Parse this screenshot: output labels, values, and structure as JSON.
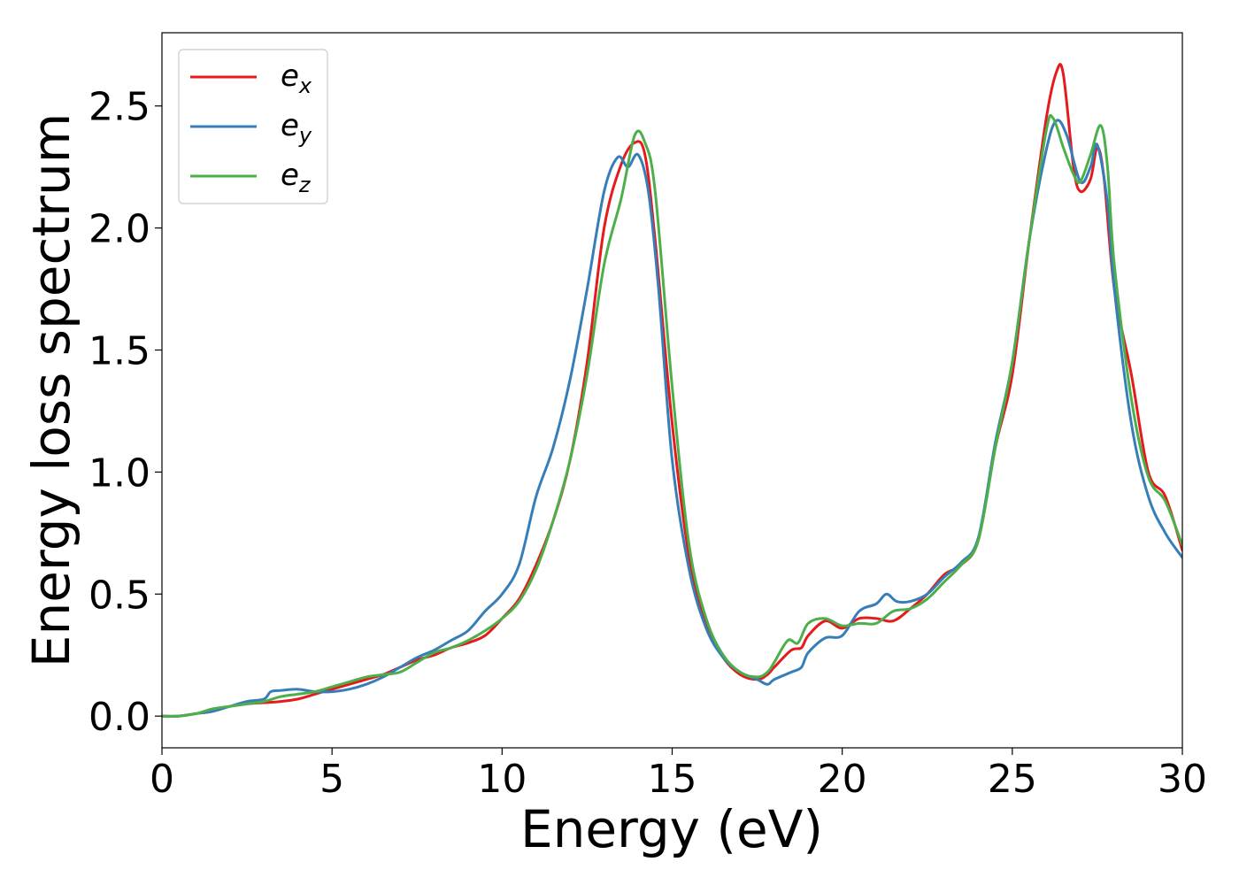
{
  "chart_data": {
    "type": "line",
    "title": "",
    "xlabel": "Energy (eV)",
    "ylabel": "Energy loss spectrum",
    "xlim": [
      0,
      30
    ],
    "ylim": [
      -0.13,
      2.8
    ],
    "xticks": [
      0,
      5,
      10,
      15,
      20,
      25,
      30
    ],
    "xtick_labels": [
      "0",
      "5",
      "10",
      "15",
      "20",
      "25",
      "30"
    ],
    "yticks": [
      0.0,
      0.5,
      1.0,
      1.5,
      2.0,
      2.5
    ],
    "ytick_labels": [
      "0.0",
      "0.5",
      "1.0",
      "1.5",
      "2.0",
      "2.5"
    ],
    "grid": false,
    "legend_position": "top-left",
    "series": [
      {
        "name": "e_x",
        "legend_base": "e",
        "legend_sub": "x",
        "color": "#e41a1c",
        "x": [
          0,
          0.5,
          1,
          1.5,
          2,
          2.5,
          3,
          3.5,
          4,
          4.5,
          5,
          5.5,
          6,
          6.5,
          7,
          7.5,
          8,
          8.5,
          9,
          9.5,
          10,
          10.5,
          11,
          11.5,
          12,
          12.5,
          13,
          13.5,
          13.9,
          14.2,
          14.5,
          15,
          15.5,
          16,
          16.5,
          17,
          17.5,
          17.8,
          18,
          18.5,
          18.8,
          19,
          19.5,
          20,
          20.5,
          21,
          21.5,
          22,
          22.5,
          23,
          23.5,
          24,
          24.5,
          25,
          25.5,
          26,
          26.3,
          26.5,
          26.8,
          27,
          27.3,
          27.5,
          27.7,
          28,
          28.5,
          29,
          29.5,
          30
        ],
        "y": [
          0,
          0,
          0.01,
          0.02,
          0.04,
          0.05,
          0.055,
          0.06,
          0.07,
          0.09,
          0.11,
          0.13,
          0.15,
          0.17,
          0.2,
          0.23,
          0.25,
          0.28,
          0.3,
          0.33,
          0.4,
          0.48,
          0.62,
          0.8,
          1.05,
          1.45,
          2.0,
          2.26,
          2.35,
          2.3,
          1.95,
          1.2,
          0.65,
          0.38,
          0.24,
          0.17,
          0.15,
          0.17,
          0.2,
          0.27,
          0.28,
          0.33,
          0.39,
          0.36,
          0.4,
          0.4,
          0.39,
          0.44,
          0.5,
          0.58,
          0.62,
          0.72,
          1.1,
          1.4,
          1.95,
          2.45,
          2.64,
          2.63,
          2.25,
          2.15,
          2.2,
          2.33,
          2.2,
          1.75,
          1.4,
          1.0,
          0.9,
          0.68
        ]
      },
      {
        "name": "e_y",
        "legend_base": "e",
        "legend_sub": "y",
        "color": "#377eb8",
        "x": [
          0,
          0.5,
          1,
          1.5,
          2,
          2.5,
          3,
          3.2,
          3.5,
          4,
          4.5,
          5,
          5.5,
          6,
          6.5,
          7,
          7.5,
          8,
          8.5,
          9,
          9.5,
          10,
          10.5,
          11,
          11.5,
          12,
          12.5,
          13,
          13.4,
          13.7,
          14.0,
          14.3,
          14.6,
          15,
          15.5,
          16,
          16.5,
          17,
          17.5,
          17.8,
          18,
          18.5,
          18.8,
          19,
          19.5,
          20,
          20.5,
          21,
          21.3,
          21.6,
          22,
          22.5,
          23,
          23.5,
          24,
          24.5,
          25,
          25.5,
          26,
          26.3,
          26.6,
          27,
          27.3,
          27.5,
          27.8,
          28,
          28.5,
          29,
          29.5,
          30
        ],
        "y": [
          0,
          0,
          0.01,
          0.02,
          0.04,
          0.06,
          0.07,
          0.1,
          0.105,
          0.11,
          0.1,
          0.1,
          0.11,
          0.13,
          0.16,
          0.2,
          0.24,
          0.27,
          0.31,
          0.35,
          0.43,
          0.5,
          0.62,
          0.9,
          1.1,
          1.38,
          1.75,
          2.15,
          2.29,
          2.25,
          2.3,
          2.15,
          1.75,
          1.05,
          0.6,
          0.36,
          0.24,
          0.18,
          0.15,
          0.13,
          0.15,
          0.18,
          0.2,
          0.26,
          0.32,
          0.33,
          0.43,
          0.46,
          0.5,
          0.47,
          0.47,
          0.5,
          0.57,
          0.63,
          0.73,
          1.12,
          1.45,
          1.95,
          2.32,
          2.44,
          2.38,
          2.19,
          2.25,
          2.34,
          2.1,
          1.75,
          1.2,
          0.9,
          0.75,
          0.65
        ]
      },
      {
        "name": "e_z",
        "legend_base": "e",
        "legend_sub": "z",
        "color": "#4daf4a",
        "x": [
          0,
          0.5,
          1,
          1.5,
          2,
          2.5,
          3,
          3.5,
          4,
          4.5,
          5,
          5.5,
          6,
          6.5,
          7,
          7.5,
          8,
          8.5,
          9,
          9.5,
          10,
          10.5,
          11,
          11.5,
          12,
          12.5,
          13,
          13.5,
          13.9,
          14.2,
          14.5,
          15,
          15.5,
          16,
          16.5,
          17,
          17.5,
          17.8,
          18,
          18.4,
          18.7,
          19,
          19.5,
          20,
          20.5,
          21,
          21.5,
          22,
          22.5,
          23,
          23.5,
          24,
          24.5,
          25,
          25.5,
          26,
          26.2,
          26.5,
          26.8,
          27,
          27.3,
          27.6,
          27.8,
          28,
          28.5,
          29,
          29.5,
          30
        ],
        "y": [
          0,
          0,
          0.01,
          0.03,
          0.04,
          0.05,
          0.06,
          0.08,
          0.09,
          0.1,
          0.12,
          0.14,
          0.16,
          0.17,
          0.18,
          0.22,
          0.26,
          0.28,
          0.31,
          0.35,
          0.4,
          0.47,
          0.6,
          0.8,
          1.05,
          1.4,
          1.85,
          2.12,
          2.38,
          2.35,
          2.15,
          1.35,
          0.7,
          0.4,
          0.25,
          0.18,
          0.16,
          0.18,
          0.22,
          0.31,
          0.3,
          0.38,
          0.4,
          0.37,
          0.38,
          0.38,
          0.43,
          0.44,
          0.48,
          0.55,
          0.62,
          0.72,
          1.1,
          1.45,
          1.95,
          2.4,
          2.45,
          2.33,
          2.22,
          2.19,
          2.3,
          2.42,
          2.25,
          1.85,
          1.3,
          0.98,
          0.88,
          0.7
        ]
      }
    ]
  }
}
